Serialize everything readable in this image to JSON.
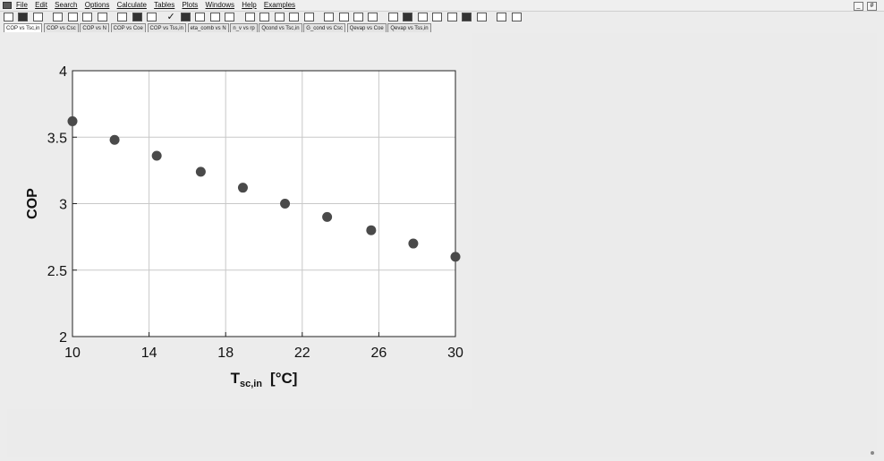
{
  "menu": {
    "items": [
      "File",
      "Edit",
      "Search",
      "Options",
      "Calculate",
      "Tables",
      "Plots",
      "Windows",
      "Help",
      "Examples"
    ]
  },
  "window_controls": {
    "minimize": "_",
    "restore": "#"
  },
  "tabs": [
    {
      "label": "COP vs Tsc,in",
      "active": true
    },
    {
      "label": "COP vs Csc",
      "active": false
    },
    {
      "label": "COP vs N",
      "active": false
    },
    {
      "label": "COP vs Coe",
      "active": false
    },
    {
      "label": "COP vs Tss,in",
      "active": false
    },
    {
      "label": "eta_comb vs N",
      "active": false
    },
    {
      "label": "n_v vs rp",
      "active": false
    },
    {
      "label": "Qcond vs Tsc,in",
      "active": false
    },
    {
      "label": "G_cond vs Csc",
      "active": false
    },
    {
      "label": "Qevap vs Coe",
      "active": false
    },
    {
      "label": "Qevap vs Tss,in",
      "active": false
    }
  ],
  "chart_data": {
    "type": "scatter",
    "xlabel_main": "T",
    "xlabel_sub": "sc,in",
    "xlabel_unit": "[°C]",
    "ylabel": "COP",
    "xlim": [
      10,
      30
    ],
    "ylim": [
      2,
      4
    ],
    "x_ticks": [
      10,
      14,
      18,
      22,
      26,
      30
    ],
    "y_ticks": [
      2,
      2.5,
      3,
      3.5,
      4
    ],
    "y_tick_labels": [
      "2",
      "2.5",
      "3",
      "3.5",
      "4"
    ],
    "grid": true,
    "x": [
      10,
      12.2,
      14.4,
      16.7,
      18.9,
      21.1,
      23.3,
      25.6,
      27.8,
      30
    ],
    "y": [
      3.62,
      3.48,
      3.36,
      3.24,
      3.12,
      3.0,
      2.9,
      2.8,
      2.7,
      2.6
    ],
    "marker_color": "#4a4a4a"
  }
}
